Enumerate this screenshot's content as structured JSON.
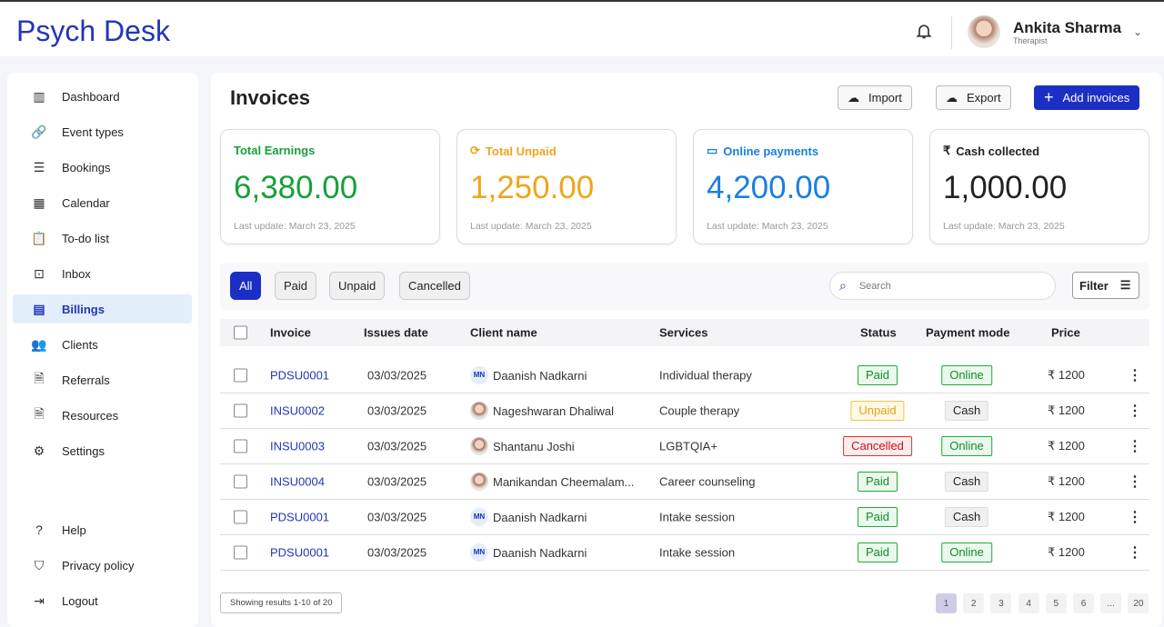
{
  "app": {
    "title": "Psych Desk"
  },
  "user": {
    "name": "Ankita Sharma",
    "role": "Therapist"
  },
  "sidebar": {
    "items": [
      {
        "label": "Dashboard",
        "icon": "dashboard-icon",
        "glyph": "▥"
      },
      {
        "label": "Event types",
        "icon": "link-icon",
        "glyph": "🔗"
      },
      {
        "label": "Bookings",
        "icon": "list-icon",
        "glyph": "☰"
      },
      {
        "label": "Calendar",
        "icon": "calendar-icon",
        "glyph": "▦"
      },
      {
        "label": "To-do list",
        "icon": "clipboard-clock-icon",
        "glyph": "📋"
      },
      {
        "label": "Inbox",
        "icon": "inbox-icon",
        "glyph": "⊡"
      },
      {
        "label": "Billings",
        "icon": "billing-icon",
        "glyph": "▤"
      },
      {
        "label": "Clients",
        "icon": "people-icon",
        "glyph": "👥"
      },
      {
        "label": "Referrals",
        "icon": "document-person-icon",
        "glyph": "🗎"
      },
      {
        "label": "Resources",
        "icon": "document-icon",
        "glyph": "🗎"
      },
      {
        "label": "Settings",
        "icon": "gear-icon",
        "glyph": "⚙"
      }
    ],
    "bottom": [
      {
        "label": "Help",
        "icon": "help-icon",
        "glyph": "?"
      },
      {
        "label": "Privacy policy",
        "icon": "shield-icon",
        "glyph": "⛉"
      },
      {
        "label": "Logout",
        "icon": "logout-icon",
        "glyph": "⇥"
      }
    ]
  },
  "page": {
    "title": "Invoices",
    "import": "Import",
    "export": "Export",
    "add": "Add invoices"
  },
  "cards": [
    {
      "label": "Total Earnings",
      "value": "6,380.00",
      "updated": "Last update: March 23, 2025",
      "color": "#16a03a",
      "glyph": ""
    },
    {
      "label": "Total Unpaid",
      "value": "1,250.00",
      "updated": "Last update: March 23, 2025",
      "color": "#f0a51c",
      "glyph": "⟳"
    },
    {
      "label": "Online payments",
      "value": "4,200.00",
      "updated": "Last update: March 23, 2025",
      "color": "#1a7fe0",
      "glyph": "▭"
    },
    {
      "label": "Cash collected",
      "value": "1,000.00",
      "updated": "Last update: March 23, 2025",
      "color": "#222222",
      "glyph": "₹"
    }
  ],
  "filters": {
    "tabs": [
      "All",
      "Paid",
      "Unpaid",
      "Cancelled"
    ],
    "search_placeholder": "Search",
    "filter": "Filter"
  },
  "table": {
    "headers": [
      "Invoice",
      "Issues date",
      "Client name",
      "Services",
      "Status",
      "Payment mode",
      "Price"
    ],
    "rows": [
      {
        "invoice": "PDSU0001",
        "date": "03/03/2025",
        "client": "Daanish Nadkarni",
        "initials": "MN",
        "service": "Individual therapy",
        "status": "Paid",
        "mode": "Online",
        "price": "₹ 1200"
      },
      {
        "invoice": "INSU0002",
        "date": "03/03/2025",
        "client": "Nageshwaran Dhaliwal",
        "initials": "",
        "service": "Couple therapy",
        "status": "Unpaid",
        "mode": "Cash",
        "price": "₹ 1200"
      },
      {
        "invoice": "INSU0003",
        "date": "03/03/2025",
        "client": "Shantanu Joshi",
        "initials": "",
        "service": "LGBTQIA+",
        "status": "Cancelled",
        "mode": "Online",
        "price": "₹ 1200"
      },
      {
        "invoice": "INSU0004",
        "date": "03/03/2025",
        "client": "Manikandan Cheemalam...",
        "initials": "",
        "service": "Career counseling",
        "status": "Paid",
        "mode": "Cash",
        "price": "₹ 1200"
      },
      {
        "invoice": "PDSU0001",
        "date": "03/03/2025",
        "client": "Daanish Nadkarni",
        "initials": "MN",
        "service": "Intake session",
        "status": "Paid",
        "mode": "Cash",
        "price": "₹ 1200"
      },
      {
        "invoice": "PDSU0001",
        "date": "03/03/2025",
        "client": "Daanish Nadkarni",
        "initials": "MN",
        "service": "Intake session",
        "status": "Paid",
        "mode": "Online",
        "price": "₹ 1200"
      }
    ]
  },
  "pagination": {
    "showing": "Showing results 1-10 of 20",
    "pages": [
      "1",
      "2",
      "3",
      "4",
      "5",
      "6",
      "...",
      "20"
    ],
    "current": "1"
  }
}
